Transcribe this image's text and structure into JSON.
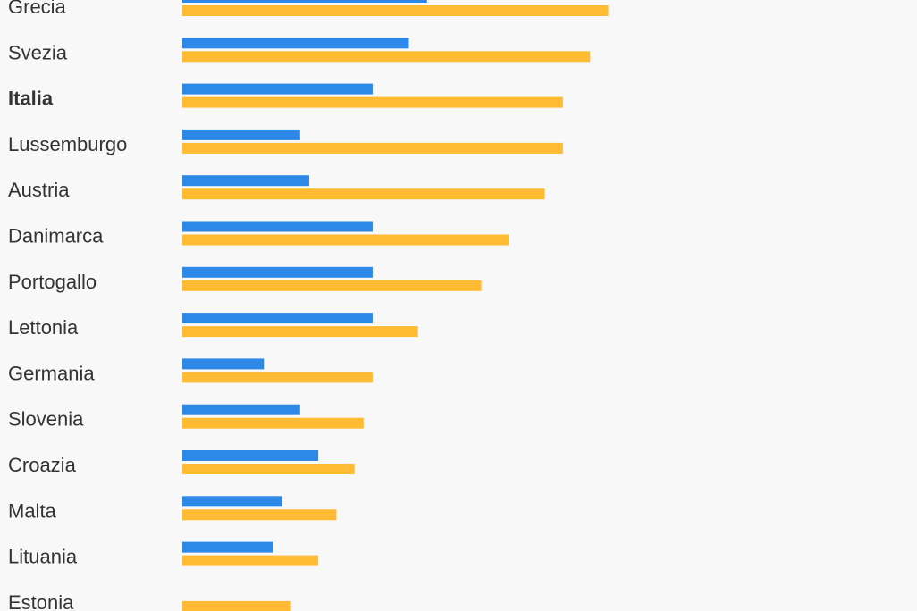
{
  "chart_data": {
    "type": "bar",
    "orientation": "horizontal",
    "grouped": true,
    "categories": [
      "Grecia",
      "Svezia",
      "Italia",
      "Lussemburgo",
      "Austria",
      "Danimarca",
      "Portogallo",
      "Lettonia",
      "Germania",
      "Slovenia",
      "Croazia",
      "Malta",
      "Lituania",
      "Estonia"
    ],
    "highlighted_category": "Italia",
    "series": [
      {
        "color": "#2e88e8",
        "values": [
          27,
          25,
          21,
          13,
          14,
          21,
          21,
          21,
          9,
          13,
          15,
          11,
          10,
          0
        ]
      },
      {
        "color": "#ffbb33",
        "values": [
          47,
          45,
          42,
          42,
          40,
          36,
          33,
          26,
          21,
          20,
          19,
          17,
          15,
          12
        ]
      }
    ],
    "xlim": [
      0,
      50
    ],
    "grid": false,
    "legend": "none"
  }
}
